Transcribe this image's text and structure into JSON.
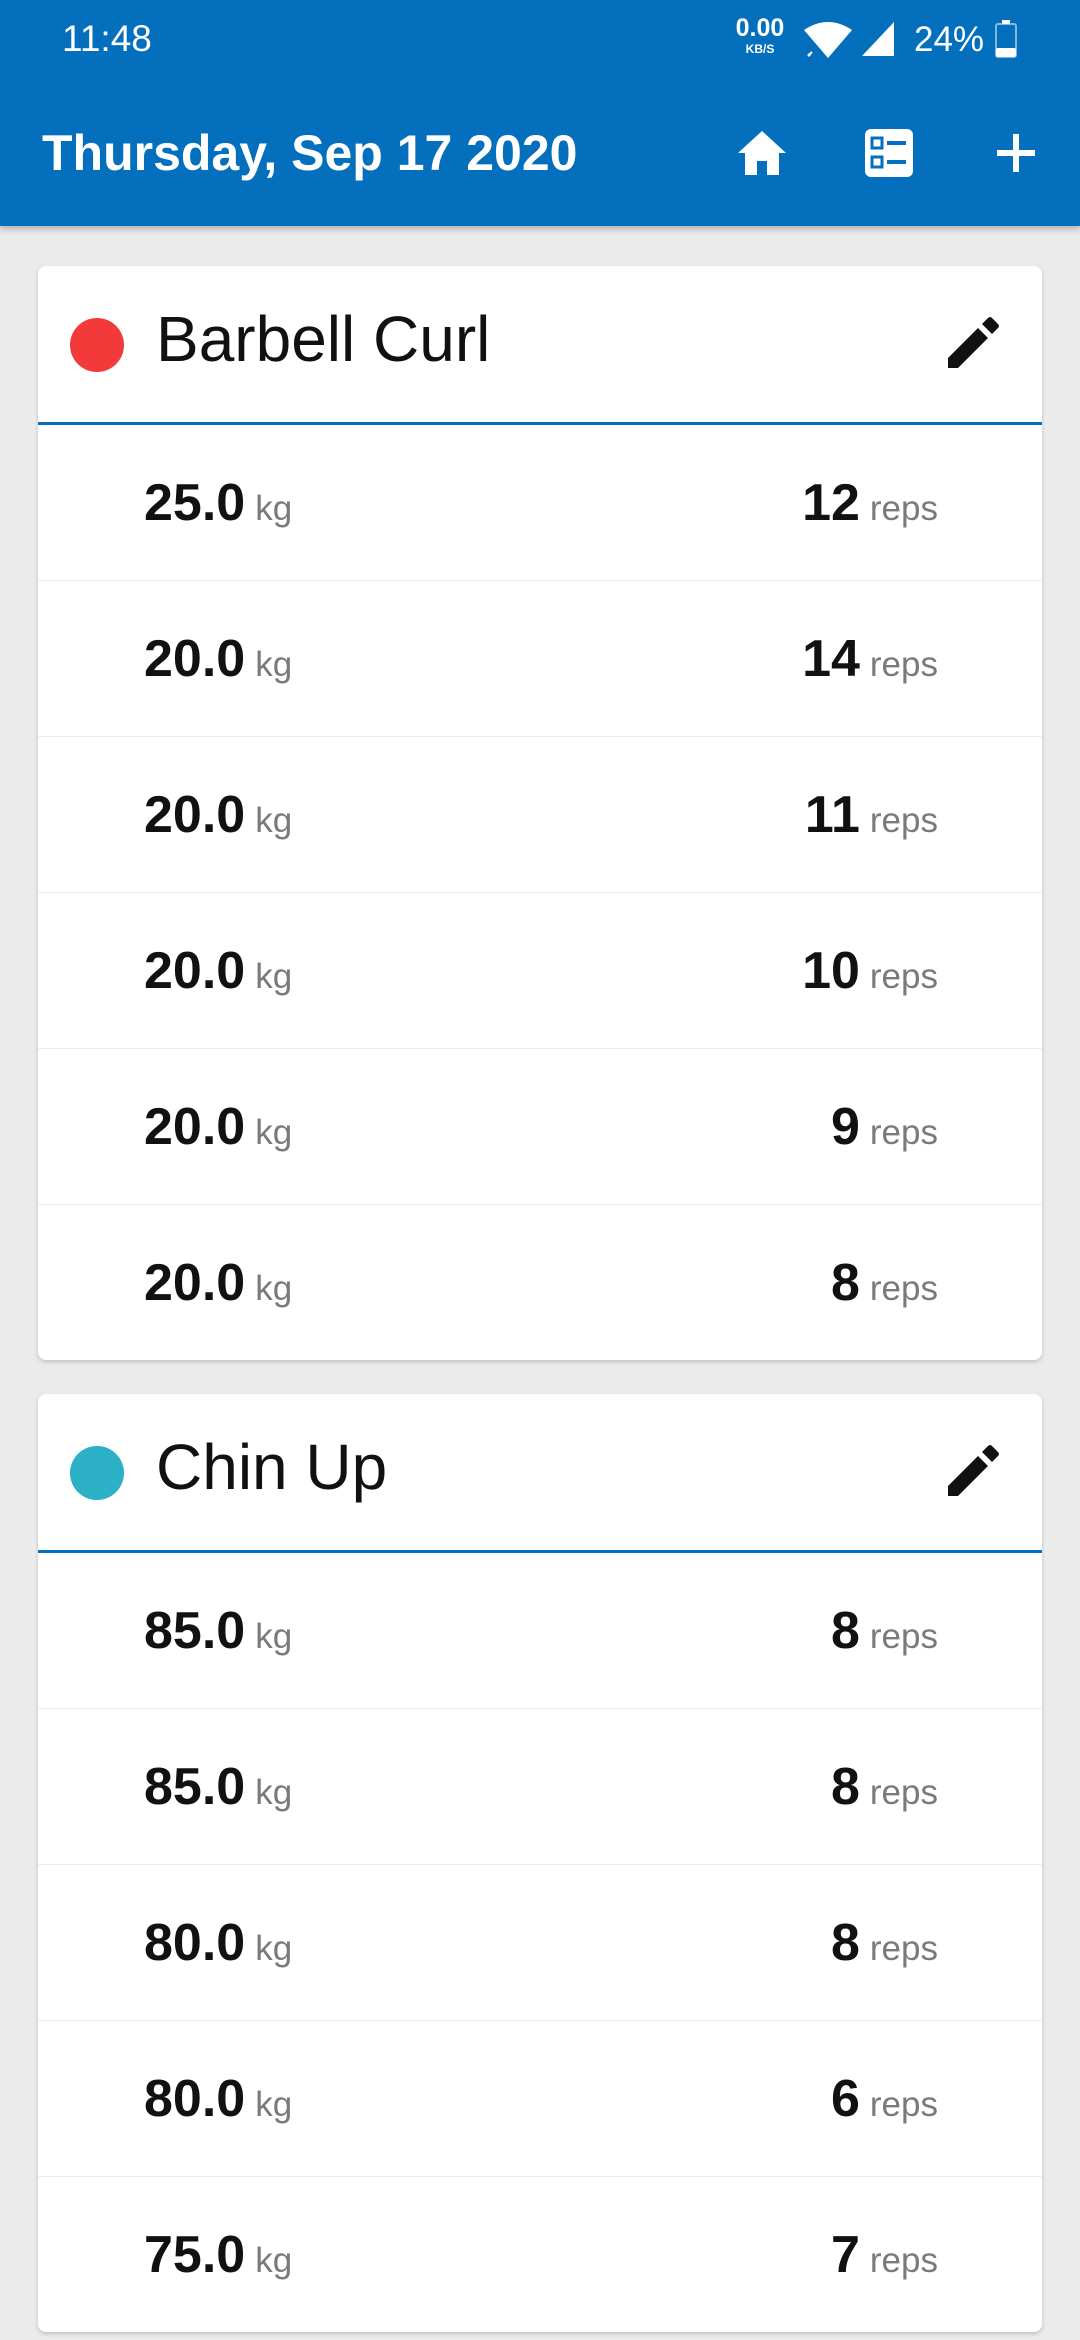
{
  "status_bar": {
    "time": "11:48",
    "net_speed_value": "0.00",
    "net_speed_unit": "KB/S",
    "battery_percent": "24%"
  },
  "header": {
    "title": "Thursday, Sep 17 2020",
    "background_color": "#0470bd",
    "actions": [
      "home-icon",
      "list-icon",
      "add-icon"
    ]
  },
  "workouts": [
    {
      "name": "Barbell Curl",
      "color": "#f23a3a",
      "sets": [
        {
          "weight": "25.0",
          "weight_unit": "kg",
          "reps": "12",
          "reps_unit": "reps"
        },
        {
          "weight": "20.0",
          "weight_unit": "kg",
          "reps": "14",
          "reps_unit": "reps"
        },
        {
          "weight": "20.0",
          "weight_unit": "kg",
          "reps": "11",
          "reps_unit": "reps"
        },
        {
          "weight": "20.0",
          "weight_unit": "kg",
          "reps": "10",
          "reps_unit": "reps"
        },
        {
          "weight": "20.0",
          "weight_unit": "kg",
          "reps": "9",
          "reps_unit": "reps"
        },
        {
          "weight": "20.0",
          "weight_unit": "kg",
          "reps": "8",
          "reps_unit": "reps"
        }
      ]
    },
    {
      "name": "Chin Up",
      "color": "#2bb0c6",
      "sets": [
        {
          "weight": "85.0",
          "weight_unit": "kg",
          "reps": "8",
          "reps_unit": "reps"
        },
        {
          "weight": "85.0",
          "weight_unit": "kg",
          "reps": "8",
          "reps_unit": "reps"
        },
        {
          "weight": "80.0",
          "weight_unit": "kg",
          "reps": "8",
          "reps_unit": "reps"
        },
        {
          "weight": "80.0",
          "weight_unit": "kg",
          "reps": "6",
          "reps_unit": "reps"
        },
        {
          "weight": "75.0",
          "weight_unit": "kg",
          "reps": "7",
          "reps_unit": "reps"
        }
      ]
    }
  ]
}
